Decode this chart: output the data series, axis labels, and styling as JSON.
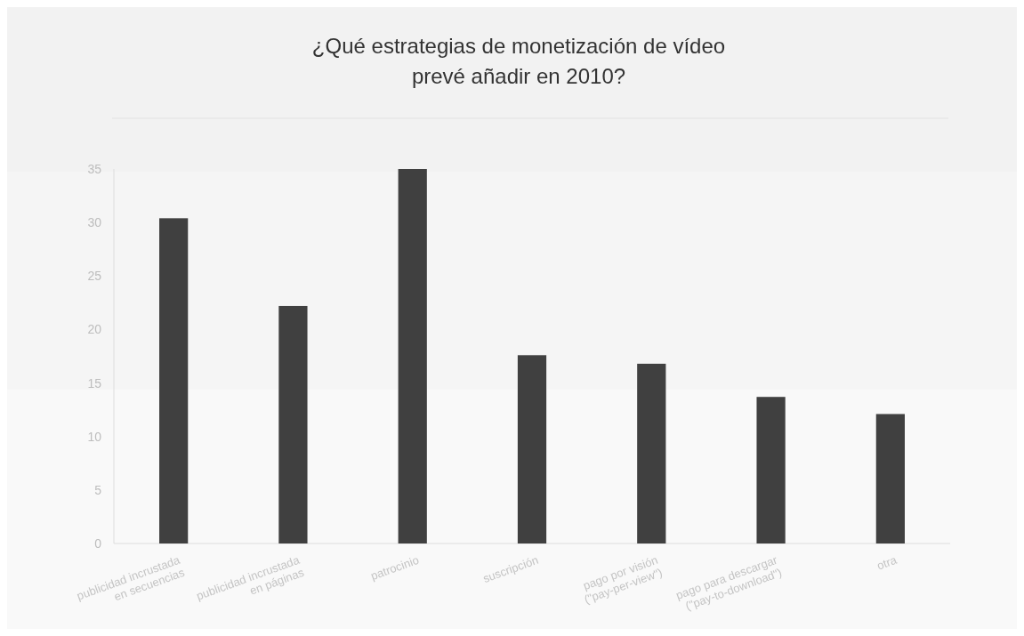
{
  "chart_data": {
    "type": "bar",
    "title": "¿Qué estrategias de monetización de vídeo\nprevé añadir en 2010?",
    "categories": [
      "publicidad incrustada\nen secuencias",
      "publicidad incrustada\nen páginas",
      "patrocinio",
      "suscripción",
      "pago por visión\n(\"pay-per-view\")",
      "pago para descargar\n(\"pay-to-download\")",
      "otra"
    ],
    "values": [
      30.4,
      22.2,
      35,
      17.6,
      16.8,
      13.7,
      12.1
    ],
    "color": "#404040",
    "ylim": [
      0,
      35
    ],
    "yticks": [
      0,
      5,
      10,
      15,
      20,
      25,
      30,
      35
    ],
    "grid": false
  }
}
